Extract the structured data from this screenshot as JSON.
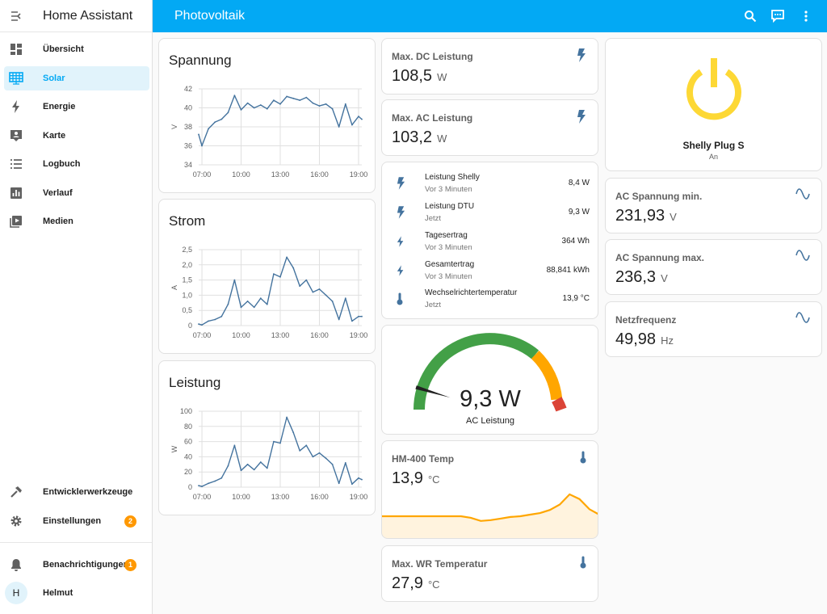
{
  "app": {
    "title": "Home Assistant"
  },
  "header": {
    "title": "Photovoltaik"
  },
  "sidebar": {
    "items": [
      {
        "label": "Übersicht",
        "icon": "dashboard-icon"
      },
      {
        "label": "Solar",
        "icon": "solar-panel-icon"
      },
      {
        "label": "Energie",
        "icon": "lightning-icon"
      },
      {
        "label": "Karte",
        "icon": "map-account-icon"
      },
      {
        "label": "Logbuch",
        "icon": "list-icon"
      },
      {
        "label": "Verlauf",
        "icon": "chart-box-icon"
      },
      {
        "label": "Medien",
        "icon": "media-icon"
      }
    ],
    "bottom": [
      {
        "label": "Entwicklerwerkzeuge",
        "icon": "hammer-icon"
      },
      {
        "label": "Einstellungen",
        "icon": "gear-icon",
        "badge": "2"
      },
      {
        "label": "Benachrichtigungen",
        "icon": "bell-icon",
        "badge": "1"
      },
      {
        "label": "Helmut",
        "avatar": "H"
      }
    ]
  },
  "graphs": {
    "spannung": {
      "title": "Spannung"
    },
    "strom": {
      "title": "Strom"
    },
    "leistung": {
      "title": "Leistung"
    }
  },
  "chart_data": [
    {
      "type": "line",
      "title": "Spannung",
      "ylabel": "V",
      "ylim": [
        34,
        42
      ],
      "yticks": [
        "34",
        "36",
        "38",
        "40",
        "42"
      ],
      "xticks": [
        "07:00",
        "10:00",
        "13:00",
        "16:00",
        "19:00"
      ],
      "x": [
        "06:45",
        "07:00",
        "07:30",
        "08:00",
        "08:30",
        "09:00",
        "09:30",
        "10:00",
        "10:30",
        "11:00",
        "11:30",
        "12:00",
        "12:30",
        "13:00",
        "13:30",
        "14:00",
        "14:30",
        "15:00",
        "15:30",
        "16:00",
        "16:30",
        "17:00",
        "17:30",
        "18:00",
        "18:30",
        "19:00",
        "19:15"
      ],
      "series": [
        {
          "values": [
            37.2,
            36.0,
            37.8,
            38.5,
            38.8,
            39.5,
            41.3,
            39.8,
            40.5,
            40.0,
            40.3,
            39.9,
            40.8,
            40.4,
            41.2,
            41.0,
            40.8,
            41.1,
            40.5,
            40.2,
            40.4,
            39.9,
            38.0,
            40.4,
            38.2,
            39.1,
            38.8
          ]
        }
      ]
    },
    {
      "type": "line",
      "title": "Strom",
      "ylabel": "A",
      "ylim": [
        0,
        2.5
      ],
      "yticks": [
        "0",
        "0,5",
        "1,0",
        "1,5",
        "2,0",
        "2,5"
      ],
      "xticks": [
        "07:00",
        "10:00",
        "13:00",
        "16:00",
        "19:00"
      ],
      "x": [
        "06:45",
        "07:00",
        "07:30",
        "08:00",
        "08:30",
        "09:00",
        "09:30",
        "10:00",
        "10:30",
        "11:00",
        "11:30",
        "12:00",
        "12:30",
        "13:00",
        "13:30",
        "14:00",
        "14:30",
        "15:00",
        "15:30",
        "16:00",
        "16:30",
        "17:00",
        "17:30",
        "18:00",
        "18:30",
        "19:00",
        "19:15"
      ],
      "series": [
        {
          "values": [
            0.05,
            0.02,
            0.15,
            0.2,
            0.3,
            0.7,
            1.5,
            0.6,
            0.8,
            0.6,
            0.9,
            0.7,
            1.7,
            1.6,
            2.25,
            1.9,
            1.3,
            1.5,
            1.1,
            1.2,
            1.0,
            0.8,
            0.2,
            0.9,
            0.15,
            0.3,
            0.3
          ]
        }
      ]
    },
    {
      "type": "line",
      "title": "Leistung",
      "ylabel": "W",
      "ylim": [
        0,
        100
      ],
      "yticks": [
        "0",
        "20",
        "40",
        "60",
        "80",
        "100"
      ],
      "xticks": [
        "07:00",
        "10:00",
        "13:00",
        "16:00",
        "19:00"
      ],
      "x": [
        "06:45",
        "07:00",
        "07:30",
        "08:00",
        "08:30",
        "09:00",
        "09:30",
        "10:00",
        "10:30",
        "11:00",
        "11:30",
        "12:00",
        "12:30",
        "13:00",
        "13:30",
        "14:00",
        "14:30",
        "15:00",
        "15:30",
        "16:00",
        "16:30",
        "17:00",
        "17:30",
        "18:00",
        "18:30",
        "19:00",
        "19:15"
      ],
      "series": [
        {
          "values": [
            2,
            1,
            5,
            8,
            12,
            28,
            55,
            22,
            30,
            23,
            33,
            25,
            60,
            58,
            92,
            72,
            48,
            55,
            40,
            45,
            38,
            30,
            5,
            32,
            4,
            12,
            10
          ]
        }
      ]
    },
    {
      "type": "area",
      "title": "HM-400 Temp",
      "series": [
        {
          "values": [
            14.0,
            14.0,
            14.0,
            14.0,
            14.0,
            14.0,
            14.0,
            14.0,
            14.0,
            13.8,
            13.4,
            13.5,
            13.7,
            13.9,
            14.0,
            14.2,
            14.4,
            14.8,
            15.5,
            16.8,
            16.2,
            14.9,
            14.2
          ]
        }
      ]
    }
  ],
  "entities": {
    "max_dc": {
      "name": "Max. DC Leistung",
      "value": "108,5",
      "unit": "W"
    },
    "max_ac": {
      "name": "Max. AC Leistung",
      "value": "103,2",
      "unit": "W"
    },
    "list": [
      {
        "name": "Leistung Shelly",
        "sub": "Vor 3 Minuten",
        "value": "8,4 W"
      },
      {
        "name": "Leistung DTU",
        "sub": "Jetzt",
        "value": "9,3 W"
      },
      {
        "name": "Tagesertrag",
        "sub": "Vor 3 Minuten",
        "value": "364 Wh"
      },
      {
        "name": "Gesamtertrag",
        "sub": "Vor 3 Minuten",
        "value": "88,841 kWh"
      },
      {
        "name": "Wechselrichtertemperatur",
        "sub": "Jetzt",
        "value": "13,9 °C"
      }
    ],
    "gauge": {
      "value": "9,3 W",
      "label": "AC Leistung",
      "fraction": 0.093
    },
    "hm400": {
      "name": "HM-400 Temp",
      "value": "13,9",
      "unit": "°C"
    },
    "max_wr": {
      "name": "Max. WR Temperatur",
      "value": "27,9",
      "unit": "°C"
    },
    "shelly": {
      "name": "Shelly Plug S",
      "state": "An"
    },
    "ac_min": {
      "name": "AC Spannung min.",
      "value": "231,93",
      "unit": "V"
    },
    "ac_max": {
      "name": "AC Spannung max.",
      "value": "236,3",
      "unit": "V"
    },
    "freq": {
      "name": "Netzfrequenz",
      "value": "49,98",
      "unit": "Hz"
    }
  },
  "colors": {
    "primary": "#03a9f4",
    "sidebar_active_bg": "#e1f3fb",
    "icon_blue": "#44739e",
    "badge": "#ff9800",
    "gauge_green": "#43a047",
    "gauge_orange": "#ffa600",
    "gauge_red": "#db4437",
    "power_on": "#fdd835",
    "temp_line": "#ffa600"
  }
}
